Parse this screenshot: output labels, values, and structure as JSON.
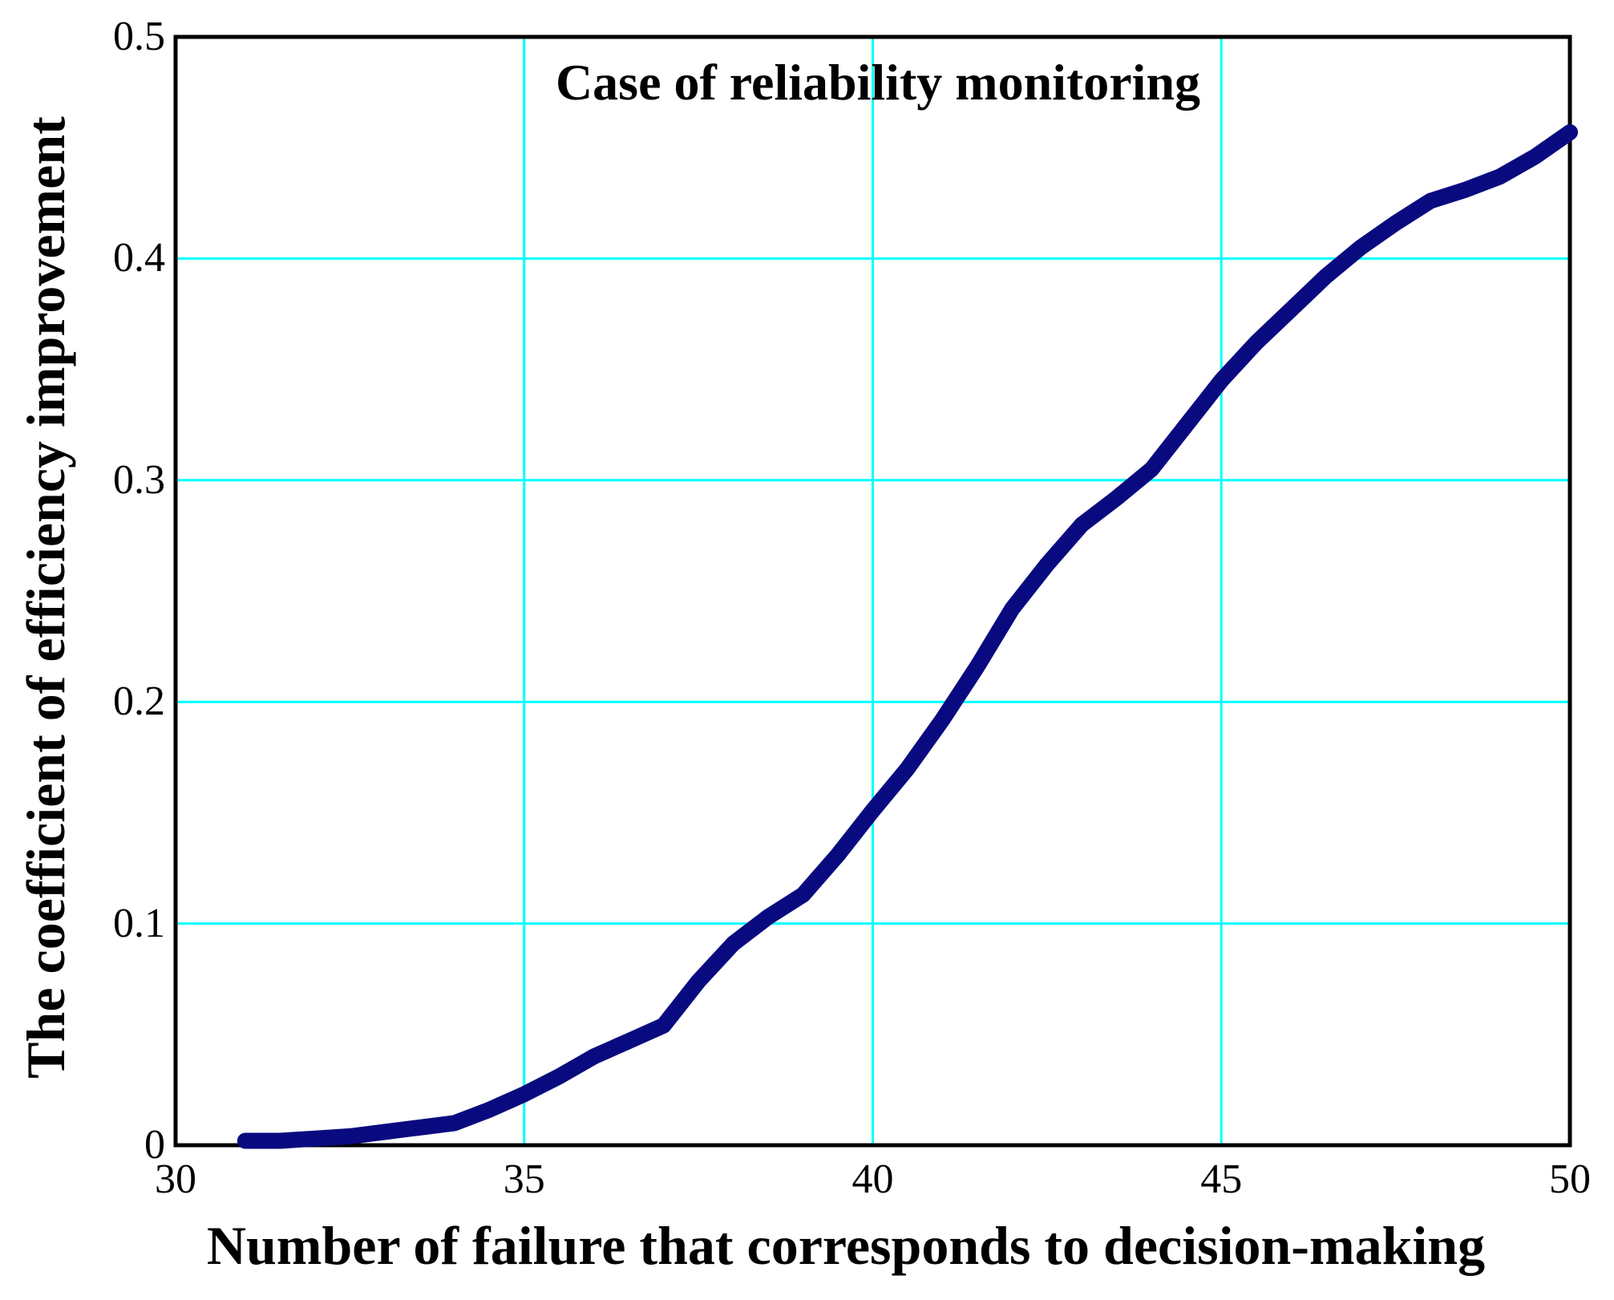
{
  "title": "Case of reliability monitoring",
  "colors": {
    "curve": "#0a0a80",
    "grid": "#00ffff",
    "axis": "#000000",
    "text": "#000000",
    "background": "#ffffff"
  },
  "axis_ticks": {
    "x_tick_labels": [
      "30",
      "35",
      "40",
      "45",
      "50"
    ],
    "y_tick_labels": [
      "0",
      "0.1",
      "0.2",
      "0.3",
      "0.4",
      "0.5"
    ]
  },
  "chart_data": {
    "type": "line",
    "title": "Case of reliability monitoring",
    "xlabel": "Number of failure that corresponds to decision-making",
    "ylabel": "The coefficient of efficiency improvement",
    "xlim": [
      30,
      50
    ],
    "ylim": [
      0,
      0.5
    ],
    "x_ticks": [
      30,
      35,
      40,
      45,
      50
    ],
    "y_ticks": [
      0,
      0.1,
      0.2,
      0.3,
      0.4,
      0.5
    ],
    "grid": true,
    "legend": "none",
    "series": [
      {
        "name": "coefficient of efficiency improvement",
        "x": [
          31,
          31.5,
          32,
          32.5,
          33,
          33.5,
          34,
          34.5,
          35,
          35.5,
          36,
          36.5,
          37,
          37.5,
          38,
          38.5,
          39,
          39.5,
          40,
          40.5,
          41,
          41.5,
          42,
          42.5,
          43,
          43.5,
          44,
          44.5,
          45,
          45.5,
          46,
          46.5,
          47,
          47.5,
          48,
          48.5,
          49,
          49.5,
          50
        ],
        "y": [
          0.002,
          0.002,
          0.003,
          0.004,
          0.006,
          0.008,
          0.01,
          0.016,
          0.023,
          0.031,
          0.04,
          0.047,
          0.054,
          0.074,
          0.091,
          0.103,
          0.113,
          0.131,
          0.151,
          0.17,
          0.192,
          0.216,
          0.242,
          0.262,
          0.28,
          0.292,
          0.305,
          0.325,
          0.345,
          0.362,
          0.377,
          0.392,
          0.405,
          0.416,
          0.426,
          0.431,
          0.437,
          0.446,
          0.457
        ]
      }
    ]
  }
}
